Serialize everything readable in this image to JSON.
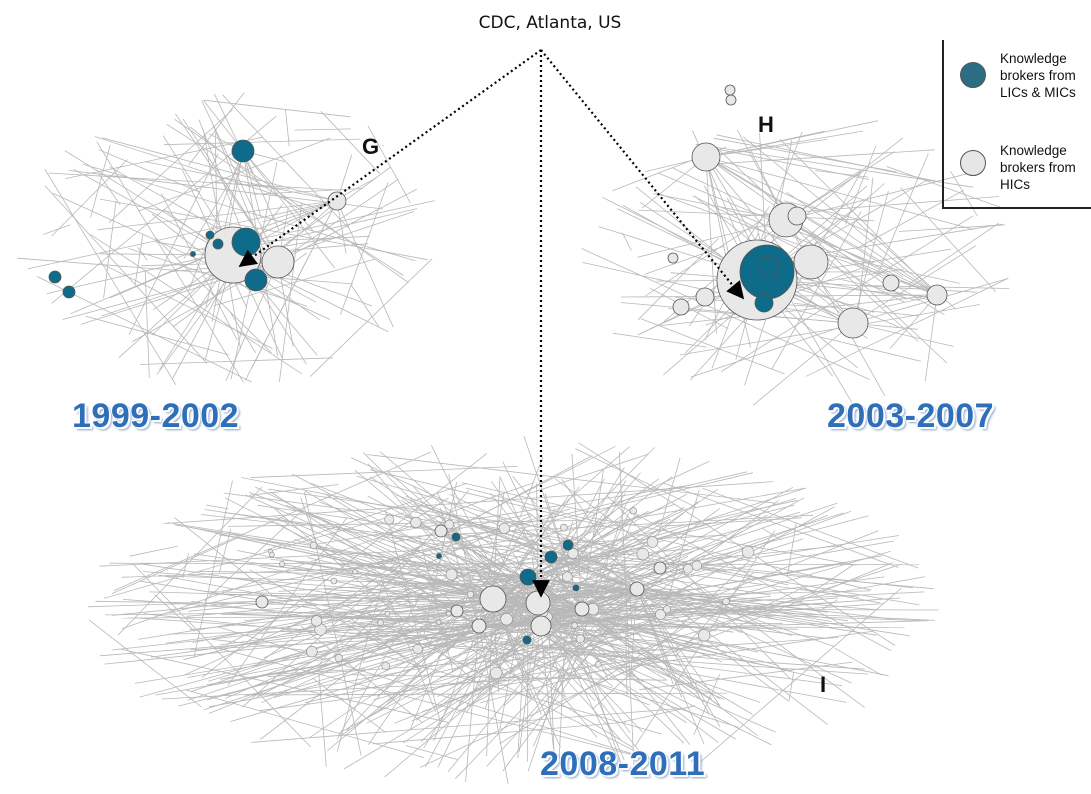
{
  "source_label": "CDC, Atlanta, US",
  "panels": [
    {
      "letter": "G",
      "period": "1999-2002"
    },
    {
      "letter": "H",
      "period": "2003-2007"
    },
    {
      "letter": "I",
      "period": "2008-2011"
    }
  ],
  "legend": [
    {
      "label": "Knowledge brokers from LICs & MICs"
    },
    {
      "label": "Knowledge brokers from HICs"
    }
  ]
}
